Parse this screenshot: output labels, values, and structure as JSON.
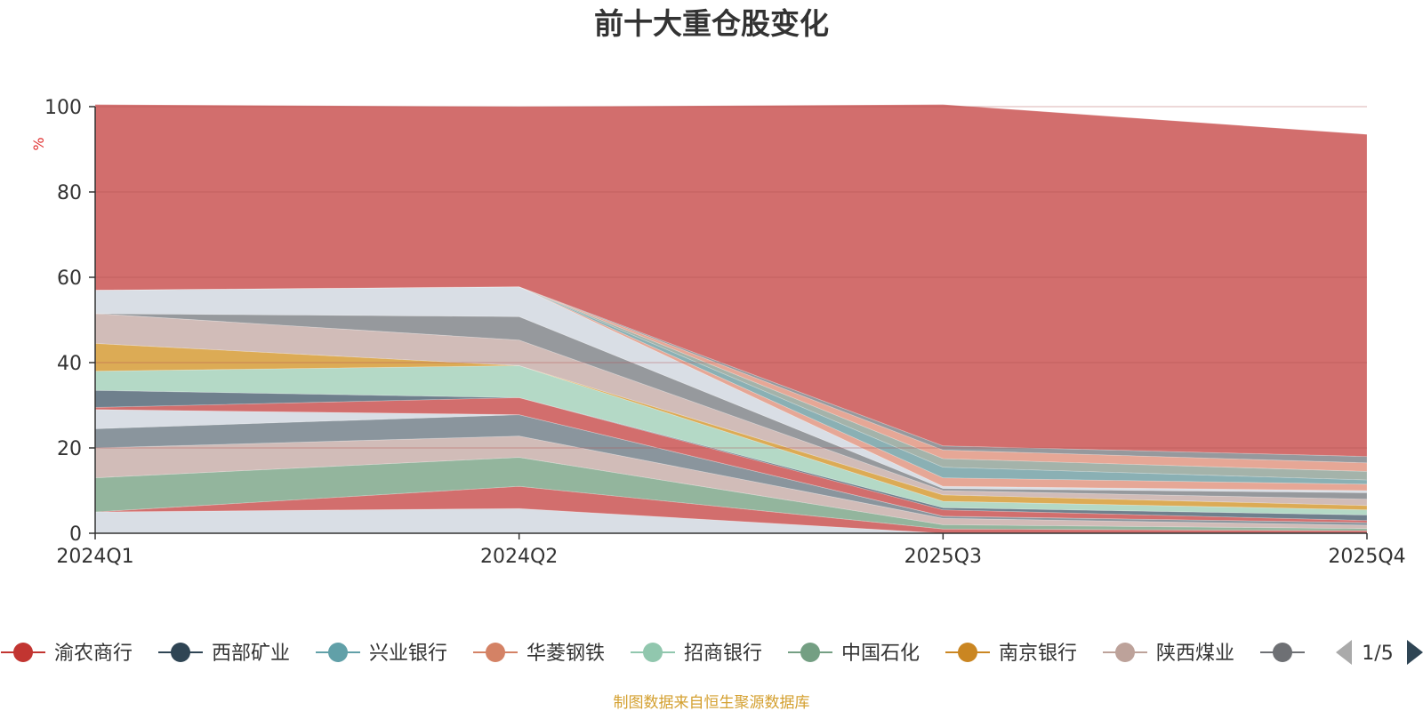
{
  "chart_data": {
    "type": "area",
    "title": "前十大重仓股变化",
    "y_unit": "%",
    "ylim": [
      0,
      100
    ],
    "y_ticks": [
      "0",
      "20",
      "40",
      "60",
      "80",
      "100"
    ],
    "categories": [
      "2024Q1",
      "2024Q2",
      "2025Q3",
      "2025Q4"
    ],
    "stacked": true,
    "series": [
      {
        "color": "#d9dee5",
        "values": [
          5.0,
          5.8,
          0.0,
          0.0
        ]
      },
      {
        "color": "#d26e6d",
        "values": [
          0.0,
          5.2,
          1.0,
          0.6
        ]
      },
      {
        "color": "#93b59d",
        "values": [
          8.0,
          6.8,
          1.0,
          0.5
        ]
      },
      {
        "color": "#d1bcb8",
        "values": [
          7.0,
          5.0,
          1.5,
          0.8
        ]
      },
      {
        "color": "#8a959d",
        "values": [
          4.5,
          5.0,
          0.5,
          0.6
        ]
      },
      {
        "color": "#d9dee5",
        "values": [
          4.5,
          0.0,
          0.0,
          0.0
        ]
      },
      {
        "color": "#d26e6d",
        "values": [
          0.5,
          4.0,
          1.5,
          0.5
        ]
      },
      {
        "color": "#6f808d",
        "values": [
          4.0,
          0.0,
          0.5,
          1.3
        ]
      },
      {
        "color": "#b4d9c6",
        "values": [
          4.5,
          7.5,
          1.5,
          1.2
        ]
      },
      {
        "color": "#dcab55",
        "values": [
          6.5,
          0.0,
          1.5,
          1.0
        ]
      },
      {
        "color": "#d1bcb8",
        "values": [
          7.0,
          6.0,
          1.0,
          1.5
        ]
      },
      {
        "color": "#96999d",
        "values": [
          0.0,
          5.5,
          0.5,
          1.5
        ]
      },
      {
        "color": "#d9dee5",
        "values": [
          5.5,
          7.0,
          0.5,
          0.5
        ]
      },
      {
        "color": "#e6a796",
        "values": [
          0.0,
          0.0,
          2.0,
          1.5
        ]
      },
      {
        "color": "#8ab0b4",
        "values": [
          0.0,
          0.0,
          2.5,
          1.0
        ]
      },
      {
        "color": "#a4b3aa",
        "values": [
          0.0,
          0.0,
          2.0,
          2.0
        ]
      },
      {
        "color": "#e6a796",
        "values": [
          0.0,
          0.0,
          2.0,
          2.0
        ]
      },
      {
        "color": "#96999d",
        "values": [
          0.0,
          0.0,
          1.0,
          1.5
        ]
      },
      {
        "color": "#d26e6d",
        "values": [
          43.5,
          42.2,
          80.0,
          75.5
        ]
      }
    ],
    "legend": [
      {
        "name": "渝农商行",
        "color": "#c23531"
      },
      {
        "name": "西部矿业",
        "color": "#2f4554"
      },
      {
        "name": "兴业银行",
        "color": "#61a0a8"
      },
      {
        "name": "华菱钢铁",
        "color": "#d48265"
      },
      {
        "name": "招商银行",
        "color": "#91c7ae"
      },
      {
        "name": "中国石化",
        "color": "#749f83"
      },
      {
        "name": "南京银行",
        "color": "#ca8622"
      },
      {
        "name": "陕西煤业",
        "color": "#bda29a"
      },
      {
        "name": "",
        "color": "#6e7074"
      }
    ],
    "legend_page": "1/5",
    "source": "制图数据来自恒生聚源数据库",
    "colors": {
      "title": "#333333",
      "unit": "#e03030",
      "source": "#d4a030",
      "axis": "#333333",
      "grid": "#b05050",
      "pager_disabled": "#aaaaaa",
      "pager_active": "#2f4554"
    }
  }
}
